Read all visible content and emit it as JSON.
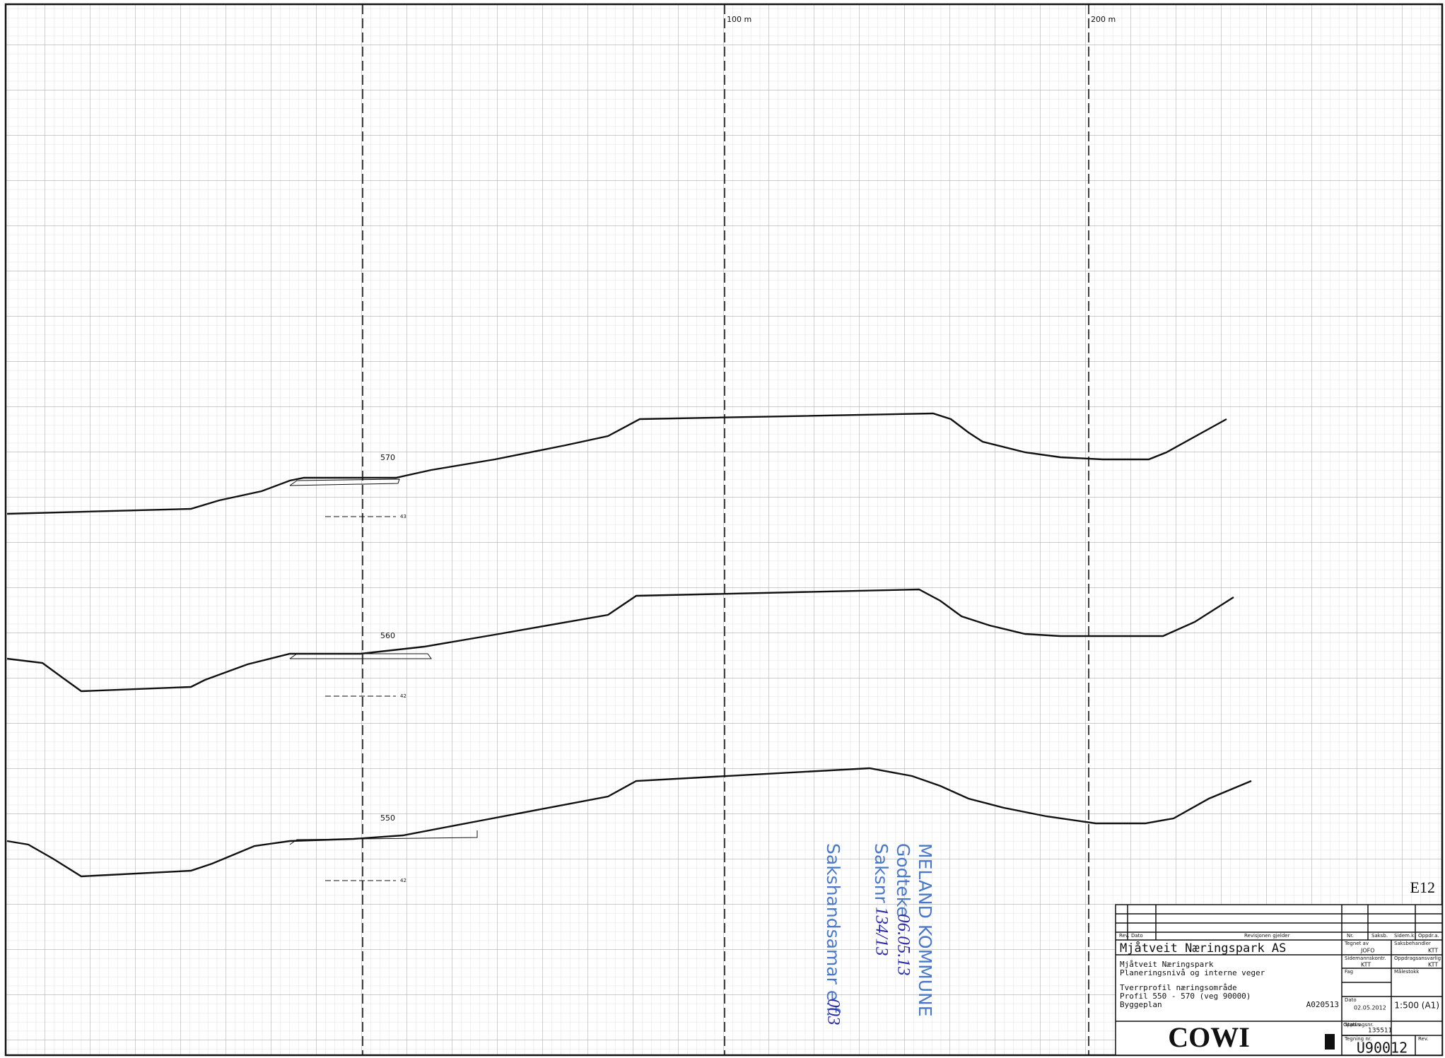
{
  "sheet": {
    "station_labels": [
      "100 m",
      "200 m"
    ],
    "sheet_code": "E12"
  },
  "profiles": [
    {
      "label": "570",
      "offset": "43"
    },
    {
      "label": "560",
      "offset": "42"
    },
    {
      "label": "550",
      "offset": "42"
    }
  ],
  "stamp": {
    "office": "MELAND KOMMUNE",
    "approved_label": "Godteke",
    "approved_date": "06.05.13",
    "case_label": "Saksnr",
    "case_no": "134/13",
    "handler": "Sakshandsamar e.f.",
    "handler_sign": "003"
  },
  "title_block": {
    "rev_header": [
      "Rev.",
      "Dato",
      "Revisjonen gjelder",
      "Nr.",
      "Saksb.",
      "Sidem.k.",
      "Oppdr.a."
    ],
    "client": "Mjåtveit Næringspark AS",
    "project": [
      "Mjåtveit Næringspark",
      "Planeringsnivå og interne veger"
    ],
    "drawing": [
      "Tverrprofil næringsområde",
      "Profil 550 - 570 (veg 90000)",
      "Byggeplan"
    ],
    "drawing_ref": "A020513",
    "drawn_by_label": "Tegnet av",
    "drawn_by": "JOFO",
    "handler_label": "Saksbehandler",
    "handler": "KTT",
    "checker_label": "Sidemannskontr.",
    "checker": "KTT",
    "responsible_label": "Oppdragsansvarlig",
    "responsible": "KTT",
    "discipline_label": "Fag",
    "scale_label": "Målestokk",
    "scale": "1:500 (A1)",
    "date_label": "Dato",
    "date": "02.05.2012",
    "company": "COWI",
    "order_label": "Oppdragsnr.",
    "order_no": "135511",
    "status_label": "Status",
    "drawing_no_label": "Tegning nr.",
    "drawing_no": "U90012",
    "rev_label": "Rev."
  }
}
